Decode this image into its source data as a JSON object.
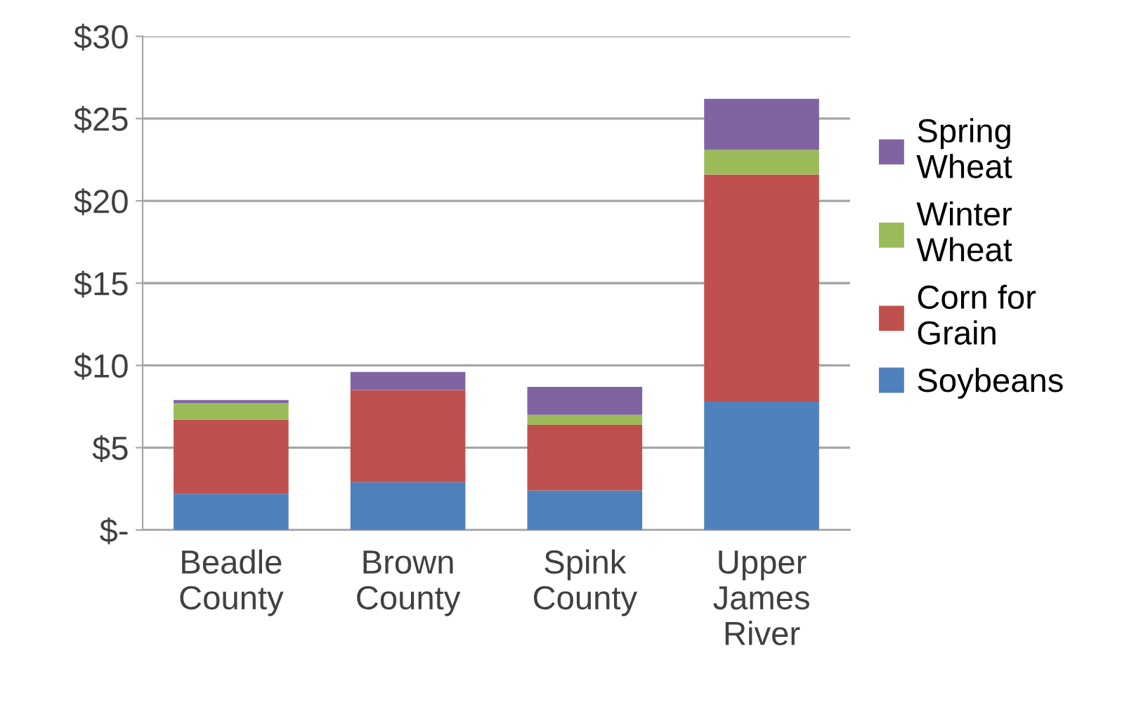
{
  "chart_data": {
    "type": "bar",
    "stacked": true,
    "categories": [
      "Beadle County",
      "Brown County",
      "Spink County",
      "Upper James River"
    ],
    "series": [
      {
        "name": "Soybeans",
        "color": "#4f81bd",
        "values": [
          2.2,
          2.9,
          2.4,
          7.8
        ]
      },
      {
        "name": "Corn for Grain",
        "color": "#c0504d",
        "values": [
          4.5,
          5.6,
          4.0,
          13.8
        ]
      },
      {
        "name": "Winter Wheat",
        "color": "#9bbb59",
        "values": [
          1.0,
          0,
          0.6,
          1.5
        ]
      },
      {
        "name": "Spring Wheat",
        "color": "#8064a2",
        "values": [
          0.2,
          1.1,
          1.7,
          3.1
        ]
      }
    ],
    "ylim": [
      0,
      30
    ],
    "yticks": [
      {
        "value": 0,
        "label": "$-"
      },
      {
        "value": 5,
        "label": "$5"
      },
      {
        "value": 10,
        "label": "$10"
      },
      {
        "value": 15,
        "label": "$15"
      },
      {
        "value": 20,
        "label": "$20"
      },
      {
        "value": 25,
        "label": "$25"
      },
      {
        "value": 30,
        "label": "$30"
      }
    ],
    "grid": "y",
    "legend": "right"
  }
}
